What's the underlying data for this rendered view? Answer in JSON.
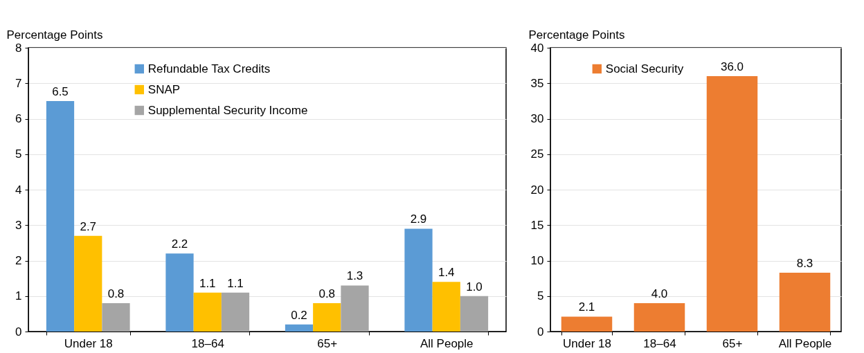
{
  "chart_data": [
    {
      "type": "bar",
      "ylabel": "Percentage Points",
      "categories": [
        "Under 18",
        "18–64",
        "65+",
        "All People"
      ],
      "ylim": [
        0,
        8
      ],
      "yticks": [
        0,
        1,
        2,
        3,
        4,
        5,
        6,
        7,
        8
      ],
      "grid": "y",
      "legend": "top left",
      "series": [
        {
          "name": "Refundable Tax Credits",
          "color": "#5b9bd5",
          "values": [
            6.5,
            2.2,
            0.2,
            2.9
          ],
          "value_labels": [
            "6.5",
            "2.2",
            "0.2",
            "2.9"
          ]
        },
        {
          "name": "SNAP",
          "color": "#ffc000",
          "values": [
            2.7,
            1.1,
            0.8,
            1.4
          ],
          "value_labels": [
            "2.7",
            "1.1",
            "0.8",
            "1.4"
          ]
        },
        {
          "name": "Supplemental Security Income",
          "color": "#a5a5a5",
          "values": [
            0.8,
            1.1,
            1.3,
            1.0
          ],
          "value_labels": [
            "0.8",
            "1.1",
            "1.3",
            "1.0"
          ]
        }
      ]
    },
    {
      "type": "bar",
      "ylabel": "Percentage Points",
      "categories": [
        "Under 18",
        "18–64",
        "65+",
        "All People"
      ],
      "ylim": [
        0,
        40
      ],
      "yticks": [
        0,
        5,
        10,
        15,
        20,
        25,
        30,
        35,
        40
      ],
      "grid": "y",
      "legend": "top left",
      "series": [
        {
          "name": "Social Security",
          "color": "#ed7d31",
          "values": [
            2.1,
            4.0,
            36.0,
            8.3
          ],
          "value_labels": [
            "2.1",
            "4.0",
            "36.0",
            "8.3"
          ]
        }
      ]
    }
  ]
}
